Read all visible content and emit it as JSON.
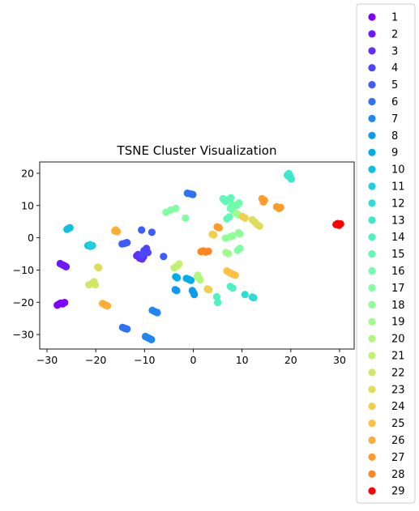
{
  "chart_data": {
    "type": "scatter",
    "title": "TSNE Cluster Visualization",
    "xlabel": "",
    "ylabel": "",
    "xlim": [
      -31.5,
      33
    ],
    "ylim": [
      -34.5,
      23.5
    ],
    "x_ticks": [
      -30,
      -20,
      -10,
      0,
      10,
      20,
      30
    ],
    "y_ticks": [
      -30,
      -20,
      -10,
      0,
      10,
      20
    ],
    "grid": false,
    "legend_position": "right-outside",
    "series": [
      {
        "name": "1",
        "color": "#8000ff",
        "points": [
          [
            -27.6,
            -20.6
          ],
          [
            -27.2,
            -20.3
          ],
          [
            -26.8,
            -20.5
          ],
          [
            -26.4,
            -20.1
          ],
          [
            -27.9,
            -20.9
          ]
        ]
      },
      {
        "name": "2",
        "color": "#6f17ff",
        "points": [
          [
            -27.3,
            -8.0
          ],
          [
            -26.8,
            -8.4
          ],
          [
            -26.4,
            -8.7
          ],
          [
            -26.1,
            -9.0
          ]
        ]
      },
      {
        "name": "3",
        "color": "#5f2ffe",
        "points": [
          [
            -11.6,
            -5.6
          ],
          [
            -11.0,
            -6.3
          ],
          [
            -10.5,
            -6.6
          ],
          [
            -11.3,
            -5.2
          ],
          [
            -10.2,
            -5.9
          ]
        ]
      },
      {
        "name": "4",
        "color": "#4e46fc",
        "points": [
          [
            -10.1,
            -4.0
          ],
          [
            -9.6,
            -3.3
          ],
          [
            -9.3,
            -4.6
          ],
          [
            -10.6,
            -5.3
          ]
        ]
      },
      {
        "name": "5",
        "color": "#3e5cf9",
        "points": [
          [
            -14.6,
            -1.9
          ],
          [
            -14.0,
            -1.7
          ],
          [
            -13.6,
            -1.5
          ],
          [
            -10.6,
            2.4
          ],
          [
            -8.5,
            1.7
          ],
          [
            -6.1,
            -5.8
          ]
        ]
      },
      {
        "name": "6",
        "color": "#2e72f6",
        "points": [
          [
            -1.2,
            13.8
          ],
          [
            -0.6,
            13.6
          ],
          [
            -0.1,
            13.4
          ],
          [
            -14.5,
            -27.8
          ],
          [
            -14.0,
            -28.1
          ],
          [
            -13.6,
            -28.3
          ]
        ]
      },
      {
        "name": "7",
        "color": "#1e87f2",
        "points": [
          [
            -9.8,
            -30.6
          ],
          [
            -9.3,
            -31.0
          ],
          [
            -8.9,
            -31.3
          ],
          [
            -8.6,
            -31.6
          ],
          [
            -8.4,
            -22.5
          ],
          [
            -7.9,
            -22.9
          ],
          [
            -7.4,
            -23.2
          ]
        ]
      },
      {
        "name": "8",
        "color": "#0f9bed",
        "points": [
          [
            -3.7,
            -16.1
          ],
          [
            -3.4,
            -16.4
          ],
          [
            -0.2,
            -16.4
          ],
          [
            0.1,
            -17.1
          ],
          [
            0.2,
            -17.6
          ]
        ]
      },
      {
        "name": "9",
        "color": "#00adea",
        "points": [
          [
            -3.6,
            -12.1
          ],
          [
            -3.3,
            -12.4
          ],
          [
            -1.4,
            -12.6
          ],
          [
            -0.9,
            -12.9
          ],
          [
            -0.5,
            -13.2
          ]
        ]
      },
      {
        "name": "10",
        "color": "#0fbfe4",
        "points": [
          [
            -25.9,
            2.6
          ],
          [
            -25.6,
            2.9
          ],
          [
            -25.3,
            3.1
          ],
          [
            -21.6,
            -2.4
          ],
          [
            -21.1,
            -2.6
          ],
          [
            -20.7,
            -2.4
          ]
        ]
      },
      {
        "name": "11",
        "color": "#1fcfdc",
        "points": [
          [
            -20.8,
            -2.5
          ],
          [
            -21.2,
            -2.2
          ]
        ]
      },
      {
        "name": "12",
        "color": "#2fdcd3",
        "points": [
          [
            10.6,
            -17.6
          ],
          [
            12.1,
            -18.4
          ],
          [
            12.4,
            -18.6
          ]
        ]
      },
      {
        "name": "13",
        "color": "#40e8cb",
        "points": [
          [
            19.3,
            19.4
          ],
          [
            19.6,
            19.9
          ],
          [
            19.9,
            18.9
          ],
          [
            20.1,
            18.2
          ],
          [
            19.5,
            19.1
          ]
        ]
      },
      {
        "name": "14",
        "color": "#50f1c1",
        "points": [
          [
            4.8,
            -18.3
          ],
          [
            5.0,
            -20.1
          ],
          [
            7.6,
            -15.1
          ],
          [
            8.1,
            -15.6
          ]
        ]
      },
      {
        "name": "15",
        "color": "#60f7b7",
        "points": [
          [
            6.1,
            12.1
          ],
          [
            6.6,
            11.3
          ],
          [
            7.1,
            11.7
          ],
          [
            6.9,
            5.9
          ],
          [
            7.4,
            6.5
          ],
          [
            7.7,
            12.4
          ]
        ]
      },
      {
        "name": "16",
        "color": "#70fcad",
        "points": [
          [
            7.9,
            10.4
          ],
          [
            8.4,
            9.8
          ],
          [
            8.9,
            10.1
          ],
          [
            9.4,
            10.8
          ],
          [
            7.6,
            9.1
          ],
          [
            8.1,
            8.6
          ]
        ]
      },
      {
        "name": "17",
        "color": "#80fea2",
        "points": [
          [
            -5.6,
            7.9
          ],
          [
            -4.6,
            8.6
          ],
          [
            -3.6,
            9.1
          ],
          [
            -1.6,
            6.1
          ],
          [
            9.1,
            -3.9
          ],
          [
            9.6,
            -3.3
          ]
        ]
      },
      {
        "name": "18",
        "color": "#90fe96",
        "points": [
          [
            6.6,
            -0.1
          ],
          [
            7.6,
            0.3
          ],
          [
            8.1,
            0.6
          ],
          [
            9.3,
            1.6
          ],
          [
            9.6,
            1.2
          ]
        ]
      },
      {
        "name": "19",
        "color": "#a0fc8b",
        "points": [
          [
            6.7,
            -4.6
          ],
          [
            7.2,
            -4.9
          ],
          [
            8.8,
            7.6
          ],
          [
            9.3,
            7.1
          ]
        ]
      },
      {
        "name": "20",
        "color": "#b0f77f",
        "points": [
          [
            0.9,
            -11.6
          ],
          [
            1.2,
            -12.6
          ],
          [
            1.4,
            -13.1
          ],
          [
            0.8,
            -12.1
          ]
        ]
      },
      {
        "name": "21",
        "color": "#c0f172",
        "points": [
          [
            -3.9,
            -9.3
          ],
          [
            -3.4,
            -8.9
          ],
          [
            -2.9,
            -8.1
          ]
        ]
      },
      {
        "name": "22",
        "color": "#d0e866",
        "points": [
          [
            -21.4,
            -14.6
          ],
          [
            -20.6,
            -13.9
          ],
          [
            -20.1,
            -14.6
          ],
          [
            -20.4,
            -13.6
          ]
        ]
      },
      {
        "name": "23",
        "color": "#e0dd5a",
        "points": [
          [
            -19.6,
            -9.1
          ],
          [
            -19.4,
            -9.3
          ],
          [
            12.1,
            5.6
          ],
          [
            12.6,
            4.9
          ],
          [
            13.1,
            4.1
          ],
          [
            13.6,
            3.6
          ]
        ]
      },
      {
        "name": "24",
        "color": "#f0cf4d",
        "points": [
          [
            10.1,
            6.6
          ],
          [
            10.6,
            6.1
          ],
          [
            3.9,
            1.1
          ],
          [
            4.2,
            0.9
          ],
          [
            2.9,
            -15.9
          ],
          [
            3.2,
            -16.1
          ]
        ]
      },
      {
        "name": "25",
        "color": "#ffbf41",
        "points": [
          [
            6.9,
            -10.3
          ],
          [
            7.6,
            -10.9
          ],
          [
            8.1,
            -11.3
          ],
          [
            8.6,
            -11.6
          ]
        ]
      },
      {
        "name": "26",
        "color": "#ffad36",
        "points": [
          [
            -18.6,
            -20.4
          ],
          [
            -18.1,
            -20.8
          ],
          [
            -17.6,
            -21.1
          ],
          [
            -16.1,
            2.1
          ],
          [
            -15.6,
            1.9
          ],
          [
            -15.9,
            2.4
          ]
        ]
      },
      {
        "name": "27",
        "color": "#ff9b2a",
        "points": [
          [
            14.1,
            12.1
          ],
          [
            14.4,
            11.1
          ],
          [
            14.6,
            11.6
          ],
          [
            17.1,
            9.6
          ],
          [
            17.6,
            9.1
          ],
          [
            17.9,
            9.4
          ],
          [
            4.9,
            3.4
          ],
          [
            5.3,
            3.1
          ]
        ]
      },
      {
        "name": "28",
        "color": "#ff8620",
        "points": [
          [
            1.6,
            -4.3
          ],
          [
            2.1,
            -4.1
          ],
          [
            2.6,
            -4.4
          ],
          [
            3.1,
            -4.2
          ]
        ]
      },
      {
        "name": "29",
        "color": "#ff0000",
        "points": [
          [
            29.3,
            4.1
          ],
          [
            29.6,
            4.4
          ],
          [
            29.9,
            3.9
          ],
          [
            30.2,
            4.3
          ]
        ]
      }
    ]
  }
}
